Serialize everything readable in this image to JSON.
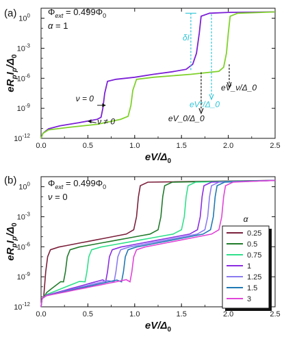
{
  "chart_data": [
    {
      "type": "line",
      "panel_label": "(a)",
      "params": [
        "Φ_ext = 0.499Φ_0",
        "α = 1"
      ],
      "xlabel": "eV/Δ_0",
      "ylabel": "eR_pI_p/Δ_0",
      "xlim": [
        0,
        2.5
      ],
      "ylim_log10": [
        -12,
        1
      ],
      "yscale": "log",
      "x_ticks": [
        "0.0",
        "0.5",
        "1.0",
        "1.5",
        "2.0",
        "2.5"
      ],
      "y_ticks": [
        "10^0",
        "10^-3",
        "10^-6",
        "10^-9",
        "10^-12"
      ],
      "series": [
        {
          "color": "#7b1fd6",
          "points": [
            [
              0.0,
              -12
            ],
            [
              0.02,
              -11.5
            ],
            [
              0.08,
              -11.05
            ],
            [
              0.2,
              -10.75
            ],
            [
              0.4,
              -10.45
            ],
            [
              0.6,
              -10.1
            ],
            [
              0.64,
              -9.9
            ],
            [
              0.66,
              -9.0
            ],
            [
              0.68,
              -7.5
            ],
            [
              0.71,
              -6.3
            ],
            [
              0.8,
              -6.1
            ],
            [
              1.0,
              -5.9
            ],
            [
              1.2,
              -5.6
            ],
            [
              1.4,
              -5.35
            ],
            [
              1.55,
              -5.1
            ],
            [
              1.62,
              -4.6
            ],
            [
              1.66,
              -3.5
            ],
            [
              1.69,
              -1.5
            ],
            [
              1.71,
              0.2
            ],
            [
              1.8,
              0.5
            ],
            [
              2.0,
              0.58
            ],
            [
              2.5,
              0.63
            ]
          ]
        },
        {
          "color": "#7fd12a",
          "points": [
            [
              0.0,
              -12
            ],
            [
              0.02,
              -11.5
            ],
            [
              0.08,
              -11.15
            ],
            [
              0.3,
              -10.9
            ],
            [
              0.6,
              -10.6
            ],
            [
              0.85,
              -10.1
            ],
            [
              0.93,
              -9.8
            ],
            [
              0.96,
              -8.7
            ],
            [
              0.98,
              -7.2
            ],
            [
              1.02,
              -6.1
            ],
            [
              1.2,
              -5.9
            ],
            [
              1.6,
              -5.6
            ],
            [
              1.9,
              -5.3
            ],
            [
              1.95,
              -4.9
            ],
            [
              1.98,
              -3.5
            ],
            [
              2.0,
              -1.5
            ],
            [
              2.02,
              0.2
            ],
            [
              2.1,
              0.5
            ],
            [
              2.5,
              0.63
            ]
          ]
        }
      ],
      "annotations": {
        "delta_I": "δI",
        "eV_nu": "eV_ν/Δ_0",
        "eV_star": "eV*/Δ_0",
        "eV_0": "eV_0/Δ_0",
        "nu_zero": "ν = 0",
        "nu_nonzero": "ν ≠ 0"
      }
    },
    {
      "type": "line",
      "panel_label": "(b)",
      "params": [
        "Φ_ext = 0.499Φ_0",
        "ν = 0"
      ],
      "xlabel": "eV/Δ_0",
      "ylabel": "eR_pI_p/Δ_0",
      "xlim": [
        0,
        2.5
      ],
      "ylim_log10": [
        -12,
        1
      ],
      "yscale": "log",
      "x_ticks": [
        "0.0",
        "0.5",
        "1.0",
        "1.5",
        "2.0",
        "2.5"
      ],
      "y_ticks": [
        "10^0",
        "10^-3",
        "10^-6",
        "10^-9",
        "10^-12"
      ],
      "legend_title": "α",
      "legend_placement": "right",
      "series": [
        {
          "name": "0.25",
          "color": "#7a1f3a",
          "vstep": 0.04,
          "vjump": 1.04
        },
        {
          "name": "0.5",
          "color": "#1f7a2a",
          "vstep": 0.25,
          "vjump": 1.3
        },
        {
          "name": "0.75",
          "color": "#2ee08a",
          "vstep": 0.48,
          "vjump": 1.55
        },
        {
          "name": "1",
          "color": "#8a2be2",
          "vstep": 0.7,
          "vjump": 1.72
        },
        {
          "name": "1.25",
          "color": "#8a7af0",
          "vstep": 0.79,
          "vjump": 1.8
        },
        {
          "name": "1.5",
          "color": "#1f78b4",
          "vstep": 0.87,
          "vjump": 1.86
        },
        {
          "name": "3",
          "color": "#e043d8",
          "vstep": 0.96,
          "vjump": 1.95
        }
      ]
    }
  ]
}
